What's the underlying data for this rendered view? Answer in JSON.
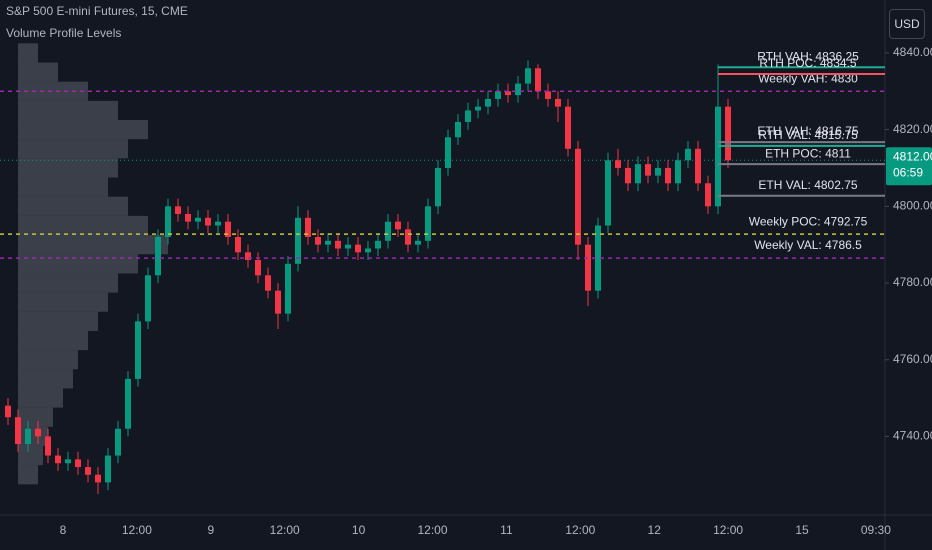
{
  "chart_data": {
    "type": "candlestick",
    "title": "S&P 500 E-mini Futures, 15, CME",
    "indicator": "Volume Profile Levels",
    "currency": "USD",
    "up_color": "#089981",
    "down_color": "#f23645",
    "ylim": [
      4719.5,
      4853.8
    ],
    "yticks": [
      {
        "value": 4740,
        "label": "4740.00"
      },
      {
        "value": 4760,
        "label": "4760.00"
      },
      {
        "value": 4780,
        "label": "4780.00"
      },
      {
        "value": 4800,
        "label": "4800.00"
      },
      {
        "value": 4820,
        "label": "4820.00"
      },
      {
        "value": 4840,
        "label": "4840.00"
      }
    ],
    "x_labels": [
      "8",
      "12:00",
      "9",
      "12:00",
      "10",
      "12:00",
      "11",
      "12:00",
      "12",
      "12:00",
      "15",
      "09:30"
    ],
    "open": [
      4748,
      4745,
      4738,
      4742,
      4740,
      4735,
      4733,
      4734,
      4732,
      4730,
      4728,
      4735,
      4742,
      4755,
      4770,
      4782,
      4792,
      4800,
      4798,
      4796,
      4797,
      4795,
      4796,
      4792,
      4788,
      4786,
      4782,
      4778,
      4772,
      4785,
      4797,
      4792,
      4790,
      4791,
      4789,
      4790,
      4788,
      4789,
      4791,
      4796,
      4794,
      4790,
      4791,
      4800,
      4810,
      4818,
      4822,
      4825,
      4826,
      4828,
      4830,
      4829,
      4832,
      4836,
      4830,
      4828,
      4826,
      4815,
      4790,
      4778,
      4795,
      4812,
      4810,
      4806,
      4811,
      4808,
      4810,
      4806,
      4812,
      4815,
      4806,
      4800,
      4826
    ],
    "high": [
      4750,
      4747,
      4744,
      4744,
      4742,
      4737,
      4736,
      4736,
      4734,
      4732,
      4737,
      4744,
      4757,
      4772,
      4784,
      4794,
      4802,
      4802,
      4800,
      4799,
      4799,
      4798,
      4798,
      4794,
      4790,
      4788,
      4784,
      4780,
      4787,
      4800,
      4799,
      4794,
      4793,
      4793,
      4792,
      4792,
      4791,
      4793,
      4798,
      4798,
      4796,
      4793,
      4802,
      4812,
      4820,
      4824,
      4827,
      4828,
      4830,
      4832,
      4832,
      4834,
      4838,
      4837,
      4832,
      4830,
      4828,
      4817,
      4792,
      4797,
      4814,
      4815,
      4812,
      4813,
      4813,
      4812,
      4812,
      4814,
      4817,
      4817,
      4808,
      4837,
      4828
    ],
    "low": [
      4743,
      4736,
      4736,
      4738,
      4733,
      4731,
      4731,
      4730,
      4728,
      4725,
      4726,
      4733,
      4740,
      4753,
      4768,
      4780,
      4790,
      4796,
      4794,
      4794,
      4793,
      4793,
      4790,
      4786,
      4784,
      4780,
      4776,
      4768,
      4770,
      4783,
      4790,
      4788,
      4788,
      4787,
      4787,
      4786,
      4786,
      4787,
      4789,
      4792,
      4788,
      4788,
      4789,
      4798,
      4808,
      4816,
      4820,
      4823,
      4824,
      4826,
      4827,
      4827,
      4830,
      4828,
      4826,
      4822,
      4813,
      4786,
      4774,
      4776,
      4793,
      4808,
      4804,
      4804,
      4806,
      4806,
      4804,
      4804,
      4810,
      4804,
      4798,
      4798,
      4810
    ],
    "close": [
      4745,
      4738,
      4742,
      4740,
      4735,
      4733,
      4734,
      4732,
      4730,
      4728,
      4735,
      4742,
      4755,
      4770,
      4782,
      4792,
      4800,
      4798,
      4796,
      4797,
      4795,
      4796,
      4792,
      4788,
      4786,
      4782,
      4778,
      4772,
      4785,
      4797,
      4792,
      4790,
      4791,
      4789,
      4790,
      4788,
      4789,
      4791,
      4796,
      4794,
      4790,
      4791,
      4800,
      4810,
      4818,
      4822,
      4825,
      4826,
      4828,
      4830,
      4829,
      4832,
      4836,
      4830,
      4828,
      4826,
      4815,
      4790,
      4778,
      4795,
      4812,
      4810,
      4806,
      4811,
      4808,
      4810,
      4806,
      4812,
      4815,
      4806,
      4800,
      4826,
      4812
    ],
    "profile": {
      "color": "#5d606b",
      "prices": [
        4730,
        4735,
        4740,
        4745,
        4750,
        4755,
        4760,
        4765,
        4770,
        4775,
        4780,
        4785,
        4790,
        4795,
        4800,
        4805,
        4810,
        4815,
        4820,
        4825,
        4830,
        4835,
        4840
      ],
      "volumes": [
        20,
        25,
        30,
        35,
        45,
        55,
        60,
        70,
        80,
        90,
        100,
        120,
        150,
        130,
        110,
        90,
        100,
        110,
        130,
        100,
        70,
        40,
        20
      ]
    },
    "weekly_levels": [
      {
        "label": "Weekly VAH: 4830",
        "value": 4830,
        "color": "#9c27b0"
      },
      {
        "label": "Weekly POC: 4792.75",
        "value": 4792.75,
        "color": "#c8c83a"
      },
      {
        "label": "Weekly VAL: 4786.5",
        "value": 4786.5,
        "color": "#9c27b0"
      }
    ],
    "session_levels": [
      {
        "label": "RTH VAH: 4836.25",
        "value": 4836.25,
        "color": "#22ab94"
      },
      {
        "label": "RTH POC: 4834.5",
        "value": 4834.5,
        "color": "#f7525f"
      },
      {
        "label": "ETH VAH: 4816.75",
        "value": 4816.75,
        "color": "#787b86"
      },
      {
        "label": "RTH VAL: 4815.75",
        "value": 4815.75,
        "color": "#22ab94"
      },
      {
        "label": "ETH POC: 4811",
        "value": 4811,
        "color": "#787b86"
      },
      {
        "label": "ETH VAL: 4802.75",
        "value": 4802.75,
        "color": "#787b86"
      }
    ],
    "last_price": {
      "value": 4812,
      "label": "4812.00"
    },
    "countdown": "06:59"
  }
}
